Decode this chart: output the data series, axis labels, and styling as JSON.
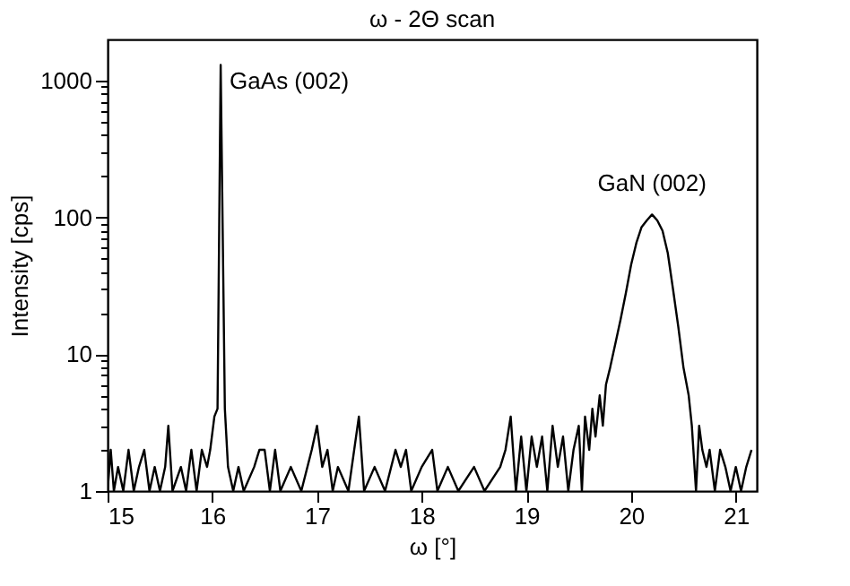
{
  "chart_data": {
    "type": "line",
    "title": "ω - 2Θ scan",
    "xlabel": "ω [°]",
    "ylabel": "Intensity [cps]",
    "annotations": [
      {
        "text": "GaAs (002)",
        "x": 16.08,
        "y": 1300
      },
      {
        "text": "GaN (002)",
        "x": 20.2,
        "y": 105
      }
    ],
    "x": [
      15.0,
      15.03,
      15.06,
      15.1,
      15.15,
      15.2,
      15.25,
      15.3,
      15.35,
      15.4,
      15.45,
      15.5,
      15.55,
      15.58,
      15.62,
      15.7,
      15.75,
      15.8,
      15.85,
      15.9,
      15.95,
      15.98,
      16.02,
      16.05,
      16.08,
      16.12,
      16.15,
      16.2,
      16.25,
      16.3,
      16.4,
      16.45,
      16.5,
      16.55,
      16.6,
      16.65,
      16.75,
      16.85,
      16.95,
      17.0,
      17.05,
      17.1,
      17.15,
      17.2,
      17.3,
      17.4,
      17.45,
      17.55,
      17.65,
      17.75,
      17.8,
      17.85,
      17.9,
      18.0,
      18.1,
      18.15,
      18.25,
      18.35,
      18.5,
      18.6,
      18.75,
      18.8,
      18.85,
      18.9,
      18.95,
      19.0,
      19.05,
      19.1,
      19.15,
      19.2,
      19.25,
      19.3,
      19.35,
      19.4,
      19.45,
      19.5,
      19.53,
      19.56,
      19.6,
      19.63,
      19.66,
      19.7,
      19.73,
      19.76,
      19.8,
      19.85,
      19.9,
      19.95,
      20.0,
      20.05,
      20.1,
      20.15,
      20.2,
      20.25,
      20.3,
      20.35,
      20.4,
      20.45,
      20.5,
      20.55,
      20.58,
      20.62,
      20.65,
      20.68,
      20.72,
      20.75,
      20.8,
      20.85,
      20.9,
      20.95,
      21.0,
      21.05,
      21.1,
      21.15
    ],
    "series": [
      {
        "color": "#000000",
        "values": [
          1,
          2,
          1,
          1.5,
          1,
          2,
          1,
          1.5,
          2,
          1,
          1.5,
          1,
          1.5,
          3,
          1,
          1.5,
          1,
          2,
          1,
          2,
          1.5,
          2,
          3.5,
          4,
          1300,
          4,
          1.5,
          1,
          1.5,
          1,
          1.5,
          2,
          2,
          1,
          2,
          1,
          1.5,
          1,
          2,
          3,
          1.5,
          2,
          1,
          1.5,
          1,
          3.5,
          1,
          1.5,
          1,
          2,
          1.5,
          2,
          1,
          1.5,
          2,
          1,
          1.5,
          1,
          1.5,
          1,
          1.5,
          2,
          3.5,
          1,
          2.5,
          1,
          2.5,
          1.5,
          2.5,
          1,
          3,
          1.5,
          2.5,
          1,
          2,
          3,
          1,
          3.5,
          2,
          4,
          2.5,
          5,
          3,
          6,
          8,
          12,
          18,
          28,
          45,
          65,
          85,
          95,
          105,
          95,
          80,
          55,
          30,
          16,
          8,
          5,
          3,
          1,
          3,
          2,
          1.5,
          2,
          1,
          2,
          1.5,
          1,
          1.5,
          1,
          1.5,
          2
        ]
      }
    ],
    "xlim": [
      15,
      21.2
    ],
    "xticks": [
      15,
      16,
      17,
      18,
      19,
      20,
      21
    ],
    "ylim": [
      1,
      2000
    ],
    "log": true,
    "yticks": [
      1,
      {
        "value": 2,
        "label": null
      },
      {
        "value": 3,
        "label": null
      },
      {
        "value": 4,
        "label": null
      },
      {
        "value": 5,
        "label": null
      },
      {
        "value": 6,
        "label": null
      },
      {
        "value": 7,
        "label": null
      },
      {
        "value": 8,
        "label": null
      },
      {
        "value": 9,
        "label": null
      },
      10,
      {
        "value": 20,
        "label": null
      },
      {
        "value": 30,
        "label": null
      },
      {
        "value": 40,
        "label": null
      },
      {
        "value": 50,
        "label": null
      },
      {
        "value": 60,
        "label": null
      },
      {
        "value": 70,
        "label": null
      },
      {
        "value": 80,
        "label": null
      },
      {
        "value": 90,
        "label": null
      },
      100,
      {
        "value": 200,
        "label": null
      },
      {
        "value": 300,
        "label": null
      },
      {
        "value": 400,
        "label": null
      },
      {
        "value": 500,
        "label": null
      },
      {
        "value": 600,
        "label": null
      },
      {
        "value": 700,
        "label": null
      },
      {
        "value": 800,
        "label": null
      },
      {
        "value": 900,
        "label": null
      },
      1000
    ],
    "grid": false
  }
}
